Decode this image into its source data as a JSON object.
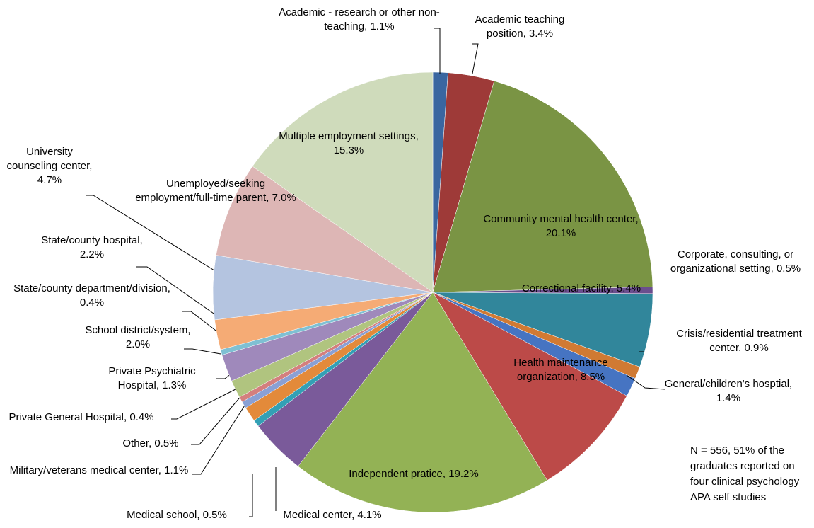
{
  "chart_data": {
    "type": "pie",
    "categories": [
      "Academic - research or other non-teaching",
      "Academic teaching position",
      "Community mental health center",
      "Corporate, consulting, or organizational setting",
      "Correctional facility",
      "Crisis/residential treatment center",
      "General/children's hosptial",
      "Health maintenance organization",
      "Independent pratice",
      "Medical center",
      "Medical school",
      "Military/veterans medical center",
      "Other",
      "Private General Hospital",
      "Private Psychiatric Hospital",
      "School district/system",
      "State/county department/division",
      "State/county hospital",
      "University counseling center",
      "Unemployed/seeking employment/full-time parent",
      "Multiple employment settings"
    ],
    "values": [
      1.1,
      3.4,
      20.1,
      0.5,
      5.4,
      0.9,
      1.4,
      8.5,
      19.2,
      4.1,
      0.5,
      1.1,
      0.5,
      0.4,
      1.3,
      2.0,
      0.4,
      2.2,
      4.7,
      7.0,
      15.3
    ],
    "value_labels": [
      "1.1%",
      "3.4%",
      "20.1%",
      "0.5%",
      "5.4%",
      "0.9%",
      "1.4%",
      "8.5%",
      "19.2%",
      "4.1%",
      "0.5%",
      "1.1%",
      "0.5%",
      "0.4%",
      "1.3%",
      "2.0%",
      "0.4%",
      "2.2%",
      "4.7%",
      "7.0%",
      "15.3%"
    ],
    "label_separator": ", ",
    "colors": [
      "#3a66a0",
      "#9e3a38",
      "#7a9444",
      "#6b4e8e",
      "#31869b",
      "#d07a33",
      "#4674c2",
      "#bc4a48",
      "#93b255",
      "#7a5a9a",
      "#33a0b5",
      "#e38a3a",
      "#8aa0d4",
      "#d47f7e",
      "#b0c47f",
      "#9f89bb",
      "#7fc0d3",
      "#f5ab75",
      "#b4c4e0",
      "#ddb6b5",
      "#cfdbbb"
    ],
    "note": "N = 556, 51% of the graduates reported on four clinical psychology APA self studies"
  }
}
